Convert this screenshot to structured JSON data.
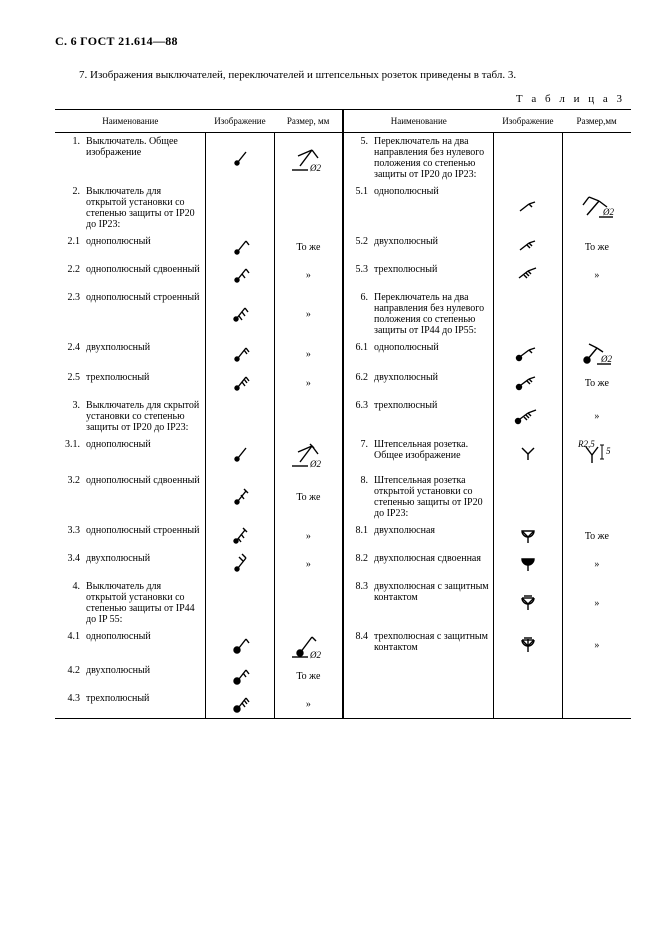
{
  "page_header": "С. 6 ГОСТ 21.614—88",
  "intro": "7.  Изображения выключателей, переключателей и штепсельных розеток приведены в табл. 3.",
  "table_caption": "Т а б л и ц а  3",
  "columns": {
    "name": "Наименование",
    "image": "Изображение",
    "size": "Размер, мм",
    "size2": "Размер,мм"
  },
  "ditto": "То же",
  "ditto2": "»",
  "left": [
    {
      "n": "1.",
      "t": "Выключатель. Общее изображение",
      "icon": "sw-gen",
      "size": "dim-phi2-a"
    },
    {
      "n": "2.",
      "t": "Выключатель для открытой установки со степенью защиты от IP20 до IP23:",
      "icon": "",
      "size": ""
    },
    {
      "n": "2.1",
      "t": "однополюсный",
      "icon": "sw-open",
      "size": "ditto"
    },
    {
      "n": "2.2",
      "t": "однополюсный сдвоенный",
      "icon": "sw-open-2",
      "size": "d2"
    },
    {
      "n": "2.3",
      "t": "однополюсный строенный",
      "icon": "sw-open-3",
      "size": "d2"
    },
    {
      "n": "2.4",
      "t": "двухполюсный",
      "icon": "sw-open-2p",
      "size": "d2"
    },
    {
      "n": "2.5",
      "t": "трехполюсный",
      "icon": "sw-open-3p",
      "size": "d2"
    },
    {
      "n": "3.",
      "t": "Выключатель для скрытой установки со степенью защиты от IP20 до IP23:",
      "icon": "",
      "size": ""
    },
    {
      "n": "3.1.",
      "t": "однополюсный",
      "icon": "sw-gen",
      "size": "dim-phi2-b"
    },
    {
      "n": "3.2",
      "t": "однополюсный сдвоенный",
      "icon": "sw-hid-2",
      "size": "ditto"
    },
    {
      "n": "3.3",
      "t": "однополюсный строенный",
      "icon": "sw-hid-3",
      "size": "d2"
    },
    {
      "n": "3.4",
      "t": "двухполюсный",
      "icon": "sw-hid-2p",
      "size": "d2"
    },
    {
      "n": "4.",
      "t": "Выключатель для открытой установки со степенью защиты от IP44 до IP 55:",
      "icon": "",
      "size": ""
    },
    {
      "n": "4.1",
      "t": "однополюсный",
      "icon": "sw-fill",
      "size": "dim-phi2-c"
    },
    {
      "n": "4.2",
      "t": "двухполюсный",
      "icon": "sw-fill-2p",
      "size": "ditto"
    },
    {
      "n": "4.3",
      "t": "трехполюсный",
      "icon": "sw-fill-3p",
      "size": "d2"
    }
  ],
  "right": [
    {
      "n": "5.",
      "t": "Переключатель на два направления без нулевого положения со степенью защиты от IP20 до IP23:",
      "icon": "",
      "size": ""
    },
    {
      "n": "5.1",
      "t": "однополюсный",
      "icon": "psw-1",
      "size": "dim-phi2-x"
    },
    {
      "n": "5.2",
      "t": "двухполюсный",
      "icon": "psw-2",
      "size": "ditto"
    },
    {
      "n": "5.3",
      "t": "трехполюсный",
      "icon": "psw-3",
      "size": "d2"
    },
    {
      "n": "6.",
      "t": "Переключатель на два направления без нулевого положения со степенью защиты от IP44 до IP55:",
      "icon": "",
      "size": ""
    },
    {
      "n": "6.1",
      "t": "однополюсный",
      "icon": "psw-f1",
      "size": "dim-phi2-y"
    },
    {
      "n": "6.2",
      "t": "двухполюсный",
      "icon": "psw-f2",
      "size": "ditto"
    },
    {
      "n": "6.3",
      "t": "трехполюсный",
      "icon": "psw-f3",
      "size": "d2"
    },
    {
      "n": "7.",
      "t": "Штепсельная розетка. Общее изображение",
      "icon": "sock-gen",
      "size": "sock-dim"
    },
    {
      "n": "8.",
      "t": "Штепсельная розетка открытой установки со степенью защиты от IP20 до IP23:",
      "icon": "",
      "size": ""
    },
    {
      "n": "8.1",
      "t": "двухполюсная",
      "icon": "sock-1",
      "size": "ditto"
    },
    {
      "n": "8.2",
      "t": "двухполюсная сдвоенная",
      "icon": "sock-2",
      "size": "d2"
    },
    {
      "n": "8.3",
      "t": "двухполюсная с защитным контактом",
      "icon": "sock-pe",
      "size": "d2"
    },
    {
      "n": "8.4",
      "t": "трехполюсная с защитным контактом",
      "icon": "sock-3pe",
      "size": "d2"
    }
  ],
  "style": {
    "stroke": "#000",
    "sw": 1.4,
    "font": "9px Times"
  }
}
